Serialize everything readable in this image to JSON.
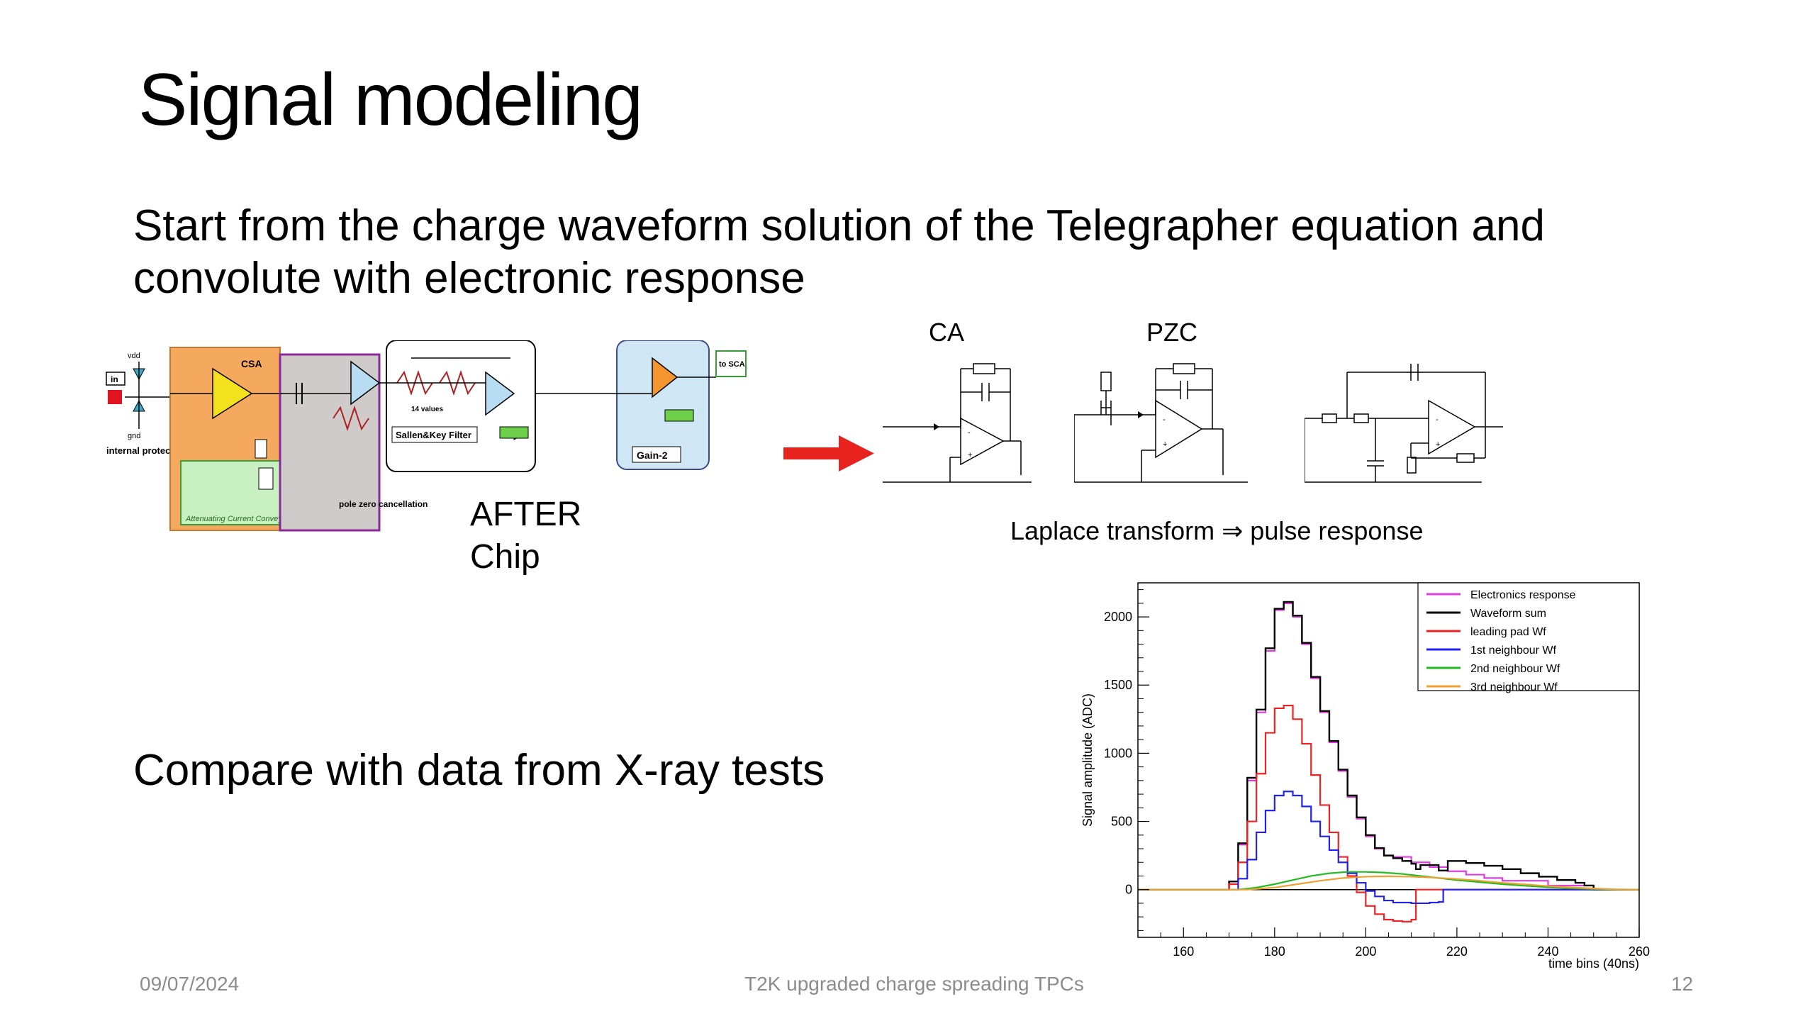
{
  "slide": {
    "title": "Signal modeling",
    "bullet1": "Start from the charge waveform solution of the Telegrapher equation and convolute with electronic response",
    "bullet2": "Compare with data from X-ray tests",
    "after_chip_line1": "AFTER",
    "after_chip_line2": "Chip",
    "ca_label": "CA",
    "pzc_label": "PZC",
    "laplace_caption": "Laplace transform ⇒ pulse response"
  },
  "chip_schematic": {
    "in_label": "in",
    "vdd_label": "vdd",
    "gnd_label": "gnd",
    "protection_label": "internal protection network",
    "csa_label": "CSA",
    "acc_label": "Attenuating Current Conveyor",
    "pzc_block_label": "pole zero cancellation",
    "sallen_key_label": "Sallen&Key Filter",
    "gain_label": "Gain-2",
    "sca_label": "to SCA",
    "values_label": "14 values"
  },
  "footer": {
    "date": "09/07/2024",
    "center": "T2K upgraded charge spreading TPCs",
    "page": "12"
  },
  "colors": {
    "arrow": "#e8231f",
    "electronics": "#e03ce0",
    "sum": "#000000",
    "leading": "#ee2222",
    "n1": "#2222ee",
    "n2": "#22bb22",
    "n3": "#f0a030"
  },
  "chart_data": {
    "type": "line",
    "title": "",
    "xlabel": "time bins (40ns)",
    "ylabel": "Signal amplitude (ADC)",
    "xlim": [
      150,
      260
    ],
    "ylim": [
      -350,
      2250
    ],
    "xticks": [
      160,
      180,
      200,
      220,
      240,
      260
    ],
    "yticks": [
      0,
      500,
      1000,
      1500,
      2000
    ],
    "legend_position": "top-right",
    "series": [
      {
        "name": "Electronics response",
        "color": "#e03ce0",
        "step": true,
        "x": [
          150,
          168,
          170,
          172,
          174,
          176,
          178,
          180,
          182,
          184,
          186,
          188,
          190,
          192,
          194,
          196,
          198,
          200,
          202,
          204,
          206,
          210,
          214,
          218,
          222,
          226,
          230,
          240,
          250,
          260
        ],
        "y": [
          0,
          0,
          60,
          330,
          800,
          1300,
          1750,
          2050,
          2100,
          2000,
          1800,
          1550,
          1300,
          1080,
          870,
          680,
          520,
          390,
          300,
          250,
          240,
          200,
          165,
          135,
          110,
          85,
          65,
          30,
          0,
          0
        ]
      },
      {
        "name": "Waveform sum",
        "color": "#000000",
        "step": true,
        "x": [
          150,
          168,
          170,
          172,
          174,
          176,
          178,
          180,
          182,
          184,
          186,
          188,
          190,
          192,
          194,
          196,
          198,
          200,
          202,
          204,
          206,
          208,
          210,
          211,
          212,
          216,
          218,
          222,
          226,
          230,
          234,
          238,
          242,
          246,
          248,
          250,
          254,
          260
        ],
        "y": [
          0,
          0,
          60,
          340,
          820,
          1320,
          1770,
          2060,
          2110,
          2010,
          1810,
          1560,
          1310,
          1090,
          880,
          690,
          530,
          400,
          305,
          250,
          230,
          210,
          190,
          150,
          180,
          140,
          210,
          195,
          175,
          150,
          120,
          95,
          70,
          50,
          30,
          0,
          0,
          0
        ]
      },
      {
        "name": "leading pad Wf",
        "color": "#ee2222",
        "step": true,
        "x": [
          150,
          168,
          170,
          172,
          174,
          176,
          178,
          180,
          182,
          184,
          186,
          188,
          190,
          192,
          194,
          196,
          198,
          200,
          202,
          204,
          206,
          208,
          210,
          211,
          212,
          216,
          220,
          230,
          240,
          260
        ],
        "y": [
          0,
          0,
          40,
          200,
          500,
          850,
          1150,
          1330,
          1350,
          1250,
          1070,
          840,
          620,
          420,
          240,
          100,
          -20,
          -120,
          -180,
          -220,
          -230,
          -235,
          -220,
          0,
          0,
          0,
          0,
          0,
          0,
          0
        ]
      },
      {
        "name": "1st neighbour Wf",
        "color": "#2222ee",
        "step": true,
        "x": [
          150,
          170,
          172,
          174,
          176,
          178,
          180,
          182,
          184,
          186,
          188,
          190,
          192,
          194,
          196,
          198,
          200,
          202,
          204,
          206,
          210,
          214,
          216,
          217,
          220,
          240,
          260
        ],
        "y": [
          0,
          0,
          80,
          220,
          420,
          580,
          690,
          720,
          690,
          610,
          500,
          390,
          290,
          200,
          120,
          50,
          -10,
          -50,
          -80,
          -95,
          -100,
          -95,
          -90,
          0,
          0,
          0,
          0
        ]
      },
      {
        "name": "2nd neighbour Wf",
        "color": "#22bb22",
        "step": false,
        "x": [
          150,
          172,
          176,
          180,
          184,
          188,
          192,
          196,
          200,
          204,
          208,
          212,
          216,
          220,
          225,
          230,
          235,
          240,
          245,
          250,
          255,
          260
        ],
        "y": [
          0,
          0,
          15,
          40,
          70,
          100,
          120,
          130,
          130,
          125,
          115,
          100,
          85,
          70,
          55,
          40,
          28,
          18,
          10,
          4,
          0,
          0
        ]
      },
      {
        "name": "3rd neighbour Wf",
        "color": "#f0a030",
        "step": false,
        "x": [
          150,
          174,
          180,
          185,
          190,
          195,
          200,
          205,
          210,
          215,
          220,
          225,
          230,
          235,
          240,
          245,
          250,
          255,
          260
        ],
        "y": [
          0,
          0,
          15,
          40,
          65,
          85,
          95,
          98,
          95,
          88,
          78,
          65,
          50,
          38,
          26,
          16,
          8,
          2,
          0
        ]
      }
    ]
  }
}
